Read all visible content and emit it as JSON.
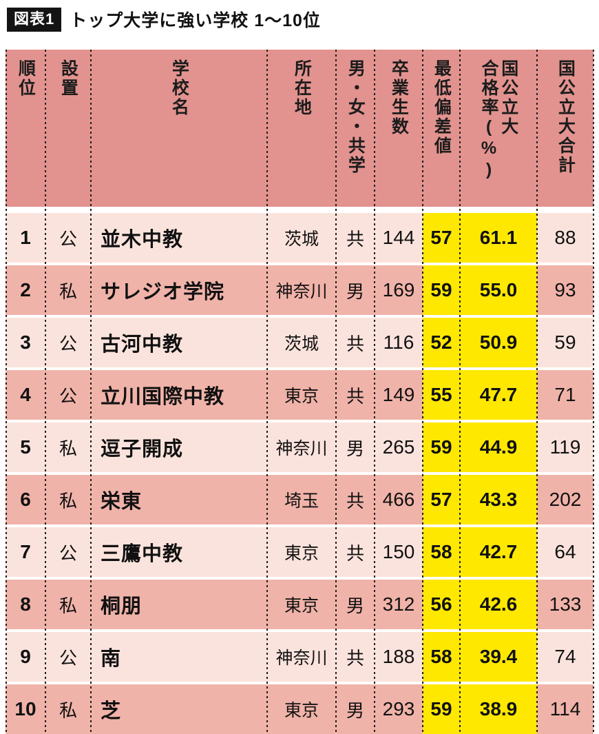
{
  "figure": {
    "badge": "図表1",
    "title": "トップ大学に強い学校 1〜10位"
  },
  "colors": {
    "header_bg": "#e2938f",
    "row_light": "#fbe3dd",
    "row_dark": "#f0b3a9",
    "highlight_yellow": "#ffe800",
    "badge_bg": "#141414",
    "badge_text": "#ffffff"
  },
  "chart_data": {
    "type": "table",
    "title": "トップ大学に強い学校 1〜10位",
    "columns": [
      "順位",
      "設置",
      "学校名",
      "所在地",
      "男・女・共学",
      "卒業生数",
      "最低偏差値",
      "国公立大\n合格率(%)",
      "国公立大合計"
    ],
    "highlight_columns": [
      "最低偏差値",
      "国公立大合格率(%)"
    ],
    "rows": [
      [
        "1",
        "公",
        "並木中教",
        "茨城",
        "共",
        "144",
        "57",
        "61.1",
        "88"
      ],
      [
        "2",
        "私",
        "サレジオ学院",
        "神奈川",
        "男",
        "169",
        "59",
        "55.0",
        "93"
      ],
      [
        "3",
        "公",
        "古河中教",
        "茨城",
        "共",
        "116",
        "52",
        "50.9",
        "59"
      ],
      [
        "4",
        "公",
        "立川国際中教",
        "東京",
        "共",
        "149",
        "55",
        "47.7",
        "71"
      ],
      [
        "5",
        "私",
        "逗子開成",
        "神奈川",
        "男",
        "265",
        "59",
        "44.9",
        "119"
      ],
      [
        "6",
        "私",
        "栄東",
        "埼玉",
        "共",
        "466",
        "57",
        "43.3",
        "202"
      ],
      [
        "7",
        "公",
        "三鷹中教",
        "東京",
        "共",
        "150",
        "58",
        "42.7",
        "64"
      ],
      [
        "8",
        "私",
        "桐朋",
        "東京",
        "男",
        "312",
        "56",
        "42.6",
        "133"
      ],
      [
        "9",
        "公",
        "南",
        "神奈川",
        "共",
        "188",
        "58",
        "39.4",
        "74"
      ],
      [
        "10",
        "私",
        "芝",
        "東京",
        "男",
        "293",
        "59",
        "38.9",
        "114"
      ]
    ]
  }
}
